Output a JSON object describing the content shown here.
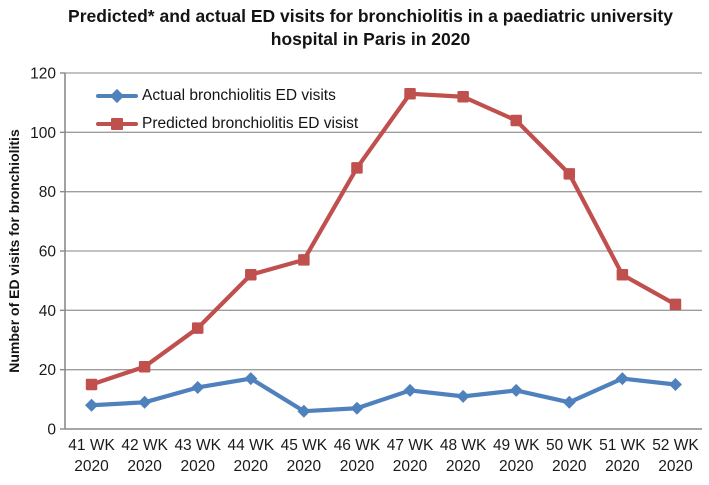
{
  "title": {
    "line1": "Predicted* and actual ED visits for bronchiolitis in a paediatric university",
    "line2": "hospital in Paris in 2020"
  },
  "chart_data": {
    "type": "line",
    "title": "Predicted* and actual ED visits for bronchiolitis in a paediatric university hospital in Paris in 2020",
    "xlabel": "",
    "ylabel": "Number of ED visits for bronchiolitis",
    "ylim": [
      0,
      120
    ],
    "ytick_step": 20,
    "grid": true,
    "legend_position": "top-left",
    "categories": [
      "41 WK",
      "42 WK",
      "43 WK",
      "44 WK",
      "45 WK",
      "46 WK",
      "47 WK",
      "48 WK",
      "49 WK",
      "50 WK",
      "51 WK",
      "52 WK"
    ],
    "category_year_label": "2020",
    "series": [
      {
        "name": "Actual bronchiolitis ED visits",
        "marker": "diamond",
        "color": "#4F81BD",
        "values": [
          8,
          9,
          14,
          17,
          6,
          7,
          13,
          11,
          13,
          9,
          17,
          15
        ]
      },
      {
        "name": "Predicted bronchiolitis ED visist",
        "marker": "square",
        "color": "#C0504D",
        "values": [
          15,
          21,
          34,
          52,
          57,
          88,
          113,
          112,
          104,
          86,
          52,
          42
        ]
      }
    ]
  },
  "colors": {
    "grid": "#9d9d9d",
    "axis_line": "#8a8a8a",
    "text": "#1a1a1a",
    "background": "#ffffff"
  }
}
